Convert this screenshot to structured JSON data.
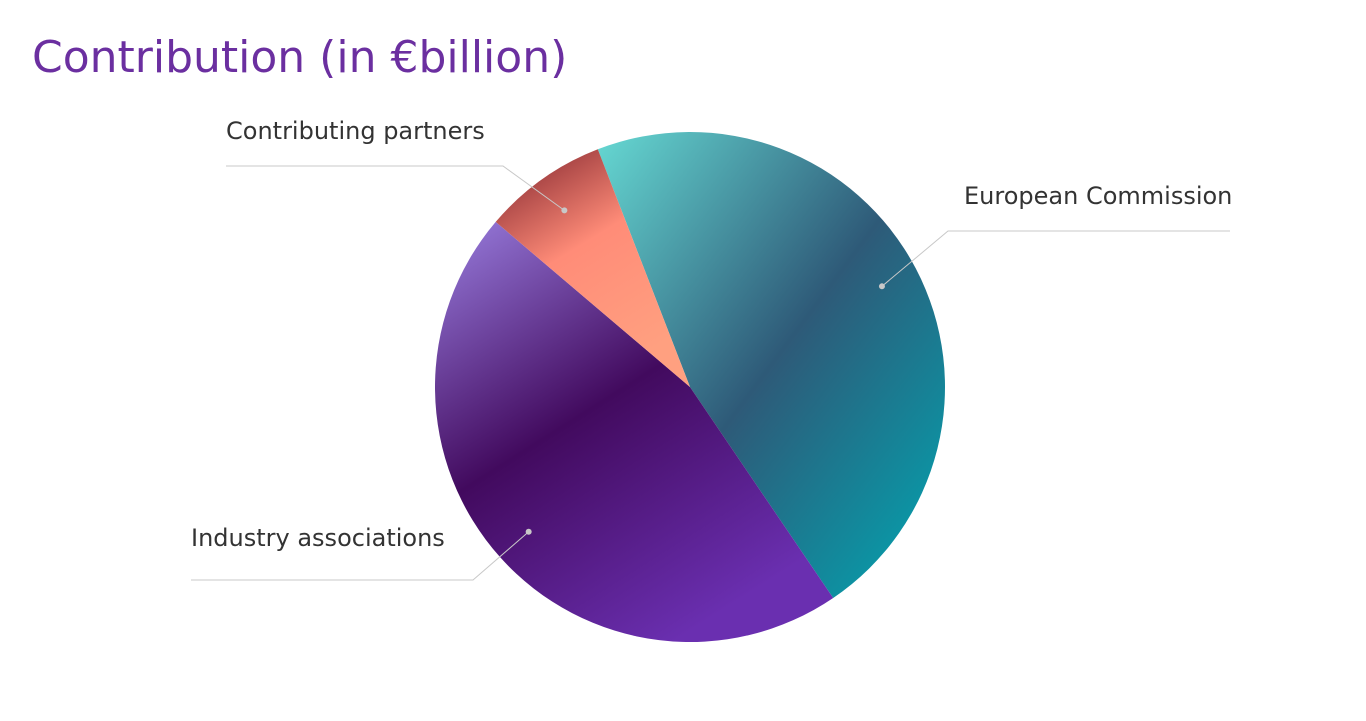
{
  "chart_data": {
    "type": "pie",
    "title": "Contribution (in €billion)",
    "categories": [
      "European Commission",
      "Industry associations",
      "Contributing partners"
    ],
    "values": [
      46.4,
      45.7,
      7.9
    ],
    "colors": [
      [
        "#66d9d3",
        "#2e5a78",
        "#00a8b3"
      ],
      [
        "#9a7fe0",
        "#420a5e",
        "#6a2fb0"
      ],
      [
        "#7a1f2a",
        "#ff8c78",
        "#ffa080"
      ]
    ]
  }
}
